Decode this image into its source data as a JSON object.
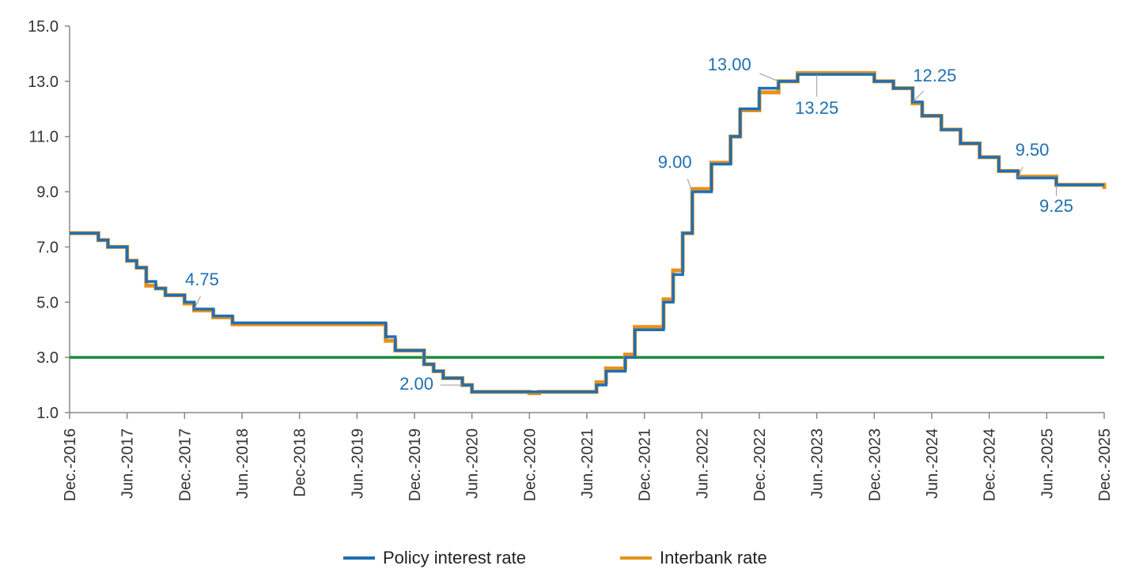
{
  "chart_data": {
    "type": "line",
    "x_ticks": [
      "Dec.-2016",
      "Jun.-2017",
      "Dec.-2017",
      "Jun.-2018",
      "Dec-2018",
      "Jun.-2019",
      "Dec.-2019",
      "Jun.-2020",
      "Dec.-2020",
      "Jun.-2021",
      "Dec.-2021",
      "Jun.-2022",
      "Dec.-2022",
      "Jun.-2023",
      "Dec.-2023",
      "Jun.-2024",
      "Dec.-2024",
      "Jun.-2025",
      "Dec.-2025"
    ],
    "y_ticks": [
      "1.0",
      "3.0",
      "5.0",
      "7.0",
      "9.0",
      "11.0",
      "13.0",
      "15.0"
    ],
    "ylim": [
      1,
      15
    ],
    "x_range": [
      "2016-12",
      "2025-12"
    ],
    "legend_position": "bottom-center",
    "series": [
      {
        "name": "Policy interest rate",
        "color": "#1f6fb2",
        "step": true,
        "points": [
          [
            "2016-12",
            7.5
          ],
          [
            "2017-03",
            7.25
          ],
          [
            "2017-04",
            7.0
          ],
          [
            "2017-06",
            6.5
          ],
          [
            "2017-07",
            6.25
          ],
          [
            "2017-08",
            5.75
          ],
          [
            "2017-09",
            5.5
          ],
          [
            "2017-10",
            5.25
          ],
          [
            "2017-12",
            5.0
          ],
          [
            "2018-01",
            4.75
          ],
          [
            "2018-03",
            4.5
          ],
          [
            "2018-05",
            4.25
          ],
          [
            "2019-09",
            3.75
          ],
          [
            "2019-10",
            3.25
          ],
          [
            "2020-01",
            2.75
          ],
          [
            "2020-02",
            2.5
          ],
          [
            "2020-03",
            2.25
          ],
          [
            "2020-05",
            2.0
          ],
          [
            "2020-06",
            1.75
          ],
          [
            "2021-07",
            2.0
          ],
          [
            "2021-08",
            2.5
          ],
          [
            "2021-10",
            3.0
          ],
          [
            "2021-11",
            4.0
          ],
          [
            "2022-02",
            5.0
          ],
          [
            "2022-03",
            6.0
          ],
          [
            "2022-04",
            7.5
          ],
          [
            "2022-05",
            9.0
          ],
          [
            "2022-07",
            10.0
          ],
          [
            "2022-09",
            11.0
          ],
          [
            "2022-10",
            12.0
          ],
          [
            "2022-12",
            12.75
          ],
          [
            "2023-02",
            13.0
          ],
          [
            "2023-04",
            13.25
          ],
          [
            "2023-12",
            13.0
          ],
          [
            "2024-02",
            12.75
          ],
          [
            "2024-04",
            12.25
          ],
          [
            "2024-05",
            11.75
          ],
          [
            "2024-07",
            11.25
          ],
          [
            "2024-09",
            10.75
          ],
          [
            "2024-11",
            10.25
          ],
          [
            "2025-01",
            9.75
          ],
          [
            "2025-03",
            9.5
          ],
          [
            "2025-07",
            9.25
          ],
          [
            "2025-12",
            9.25
          ]
        ]
      },
      {
        "name": "Interbank rate",
        "color": "#e8911c",
        "step": true,
        "points": [
          [
            "2016-12",
            7.5
          ],
          [
            "2017-03",
            7.25
          ],
          [
            "2017-04",
            7.0
          ],
          [
            "2017-06",
            6.5
          ],
          [
            "2017-07",
            6.25
          ],
          [
            "2017-08",
            5.6
          ],
          [
            "2017-09",
            5.5
          ],
          [
            "2017-10",
            5.25
          ],
          [
            "2017-12",
            4.95
          ],
          [
            "2018-01",
            4.7
          ],
          [
            "2018-03",
            4.45
          ],
          [
            "2018-05",
            4.2
          ],
          [
            "2019-09",
            3.6
          ],
          [
            "2019-10",
            3.25
          ],
          [
            "2020-01",
            2.75
          ],
          [
            "2020-02",
            2.5
          ],
          [
            "2020-03",
            2.25
          ],
          [
            "2020-05",
            2.0
          ],
          [
            "2020-06",
            1.75
          ],
          [
            "2020-12",
            1.7
          ],
          [
            "2021-01",
            1.75
          ],
          [
            "2021-07",
            2.1
          ],
          [
            "2021-08",
            2.6
          ],
          [
            "2021-10",
            3.1
          ],
          [
            "2021-11",
            4.1
          ],
          [
            "2022-02",
            5.1
          ],
          [
            "2022-03",
            6.15
          ],
          [
            "2022-04",
            7.5
          ],
          [
            "2022-05",
            9.1
          ],
          [
            "2022-07",
            10.05
          ],
          [
            "2022-09",
            11.0
          ],
          [
            "2022-10",
            11.95
          ],
          [
            "2022-12",
            12.6
          ],
          [
            "2023-02",
            13.0
          ],
          [
            "2023-04",
            13.3
          ],
          [
            "2023-12",
            13.0
          ],
          [
            "2024-02",
            12.75
          ],
          [
            "2024-04",
            12.2
          ],
          [
            "2024-05",
            11.75
          ],
          [
            "2024-07",
            11.25
          ],
          [
            "2024-09",
            10.75
          ],
          [
            "2024-11",
            10.25
          ],
          [
            "2025-01",
            9.75
          ],
          [
            "2025-03",
            9.55
          ],
          [
            "2025-07",
            9.25
          ],
          [
            "2025-12",
            9.1
          ]
        ]
      },
      {
        "name": "",
        "color": "#1a8a3c",
        "step": false,
        "points": [
          [
            "2016-12",
            3.0
          ],
          [
            "2025-12",
            3.0
          ]
        ]
      }
    ],
    "annotations": [
      {
        "text": "4.75",
        "x": "2018-01",
        "y": 4.75
      },
      {
        "text": "2.00",
        "x": "2020-05",
        "y": 2.0
      },
      {
        "text": "9.00",
        "x": "2022-05",
        "y": 9.0
      },
      {
        "text": "13.00",
        "x": "2023-02",
        "y": 13.0
      },
      {
        "text": "13.25",
        "x": "2023-06",
        "y": 13.25
      },
      {
        "text": "12.25",
        "x": "2024-04",
        "y": 12.25
      },
      {
        "text": "9.50",
        "x": "2025-03",
        "y": 9.5
      },
      {
        "text": "9.25",
        "x": "2025-07",
        "y": 9.25
      }
    ],
    "annotation_color": "#1f6fb2"
  },
  "legend": {
    "items": [
      {
        "label": "Policy interest rate",
        "color": "#1f6fb2"
      },
      {
        "label": "Interbank rate",
        "color": "#e8911c"
      }
    ]
  }
}
